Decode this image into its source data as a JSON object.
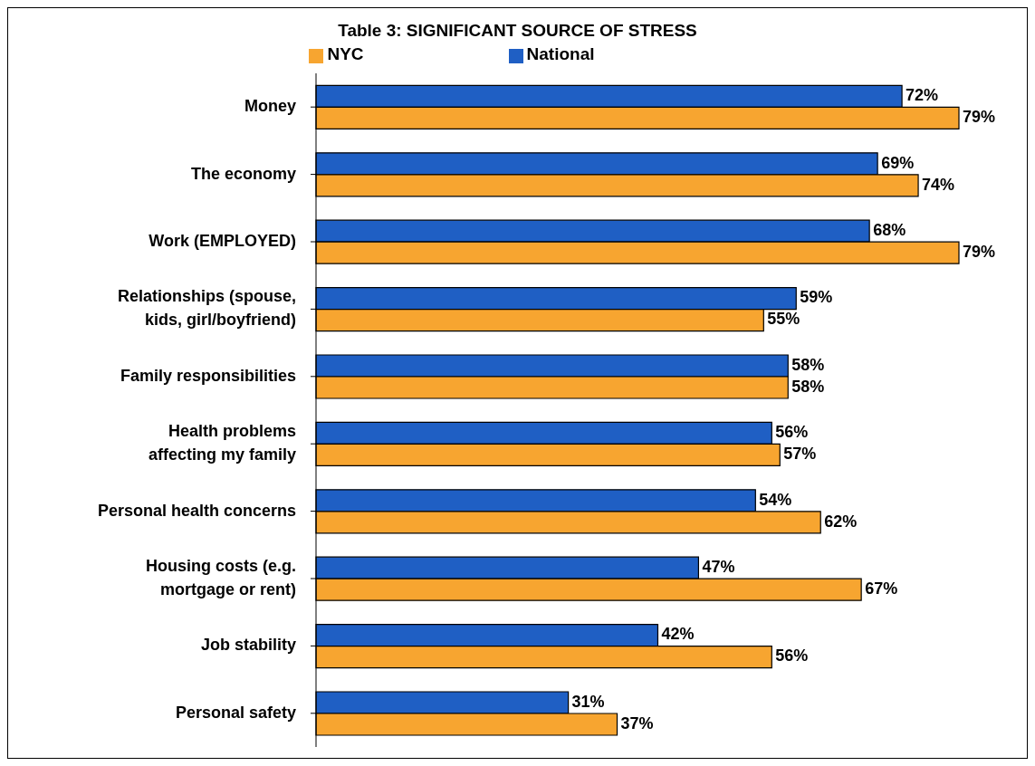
{
  "chart_data": {
    "type": "bar",
    "orientation": "horizontal",
    "title": "Table 3: SIGNIFICANT SOURCE OF STRESS",
    "legend": "top",
    "categories": [
      "Money",
      "The economy",
      "Work (EMPLOYED)",
      "Relationships (spouse, kids, girl/boyfriend)",
      "Family responsibilities",
      "Health problems affecting my family",
      "Personal health concerns",
      "Housing costs (e.g. mortgage or rent)",
      "Job stability",
      "Personal safety"
    ],
    "series": [
      {
        "name": "National",
        "color": "#1f5fc4",
        "values": [
          72,
          69,
          68,
          59,
          58,
          56,
          54,
          47,
          42,
          31
        ],
        "value_labels": [
          "72%",
          "69%",
          "68%",
          "59%",
          "58%",
          "56%",
          "54%",
          "47%",
          "42%",
          "31%"
        ]
      },
      {
        "name": "NYC",
        "color": "#f7a530",
        "values": [
          79,
          74,
          79,
          55,
          58,
          57,
          62,
          67,
          56,
          37
        ],
        "value_labels": [
          "79%",
          "74%",
          "79%",
          "55%",
          "58%",
          "57%",
          "62%",
          "67%",
          "56%",
          "37%"
        ]
      }
    ]
  }
}
